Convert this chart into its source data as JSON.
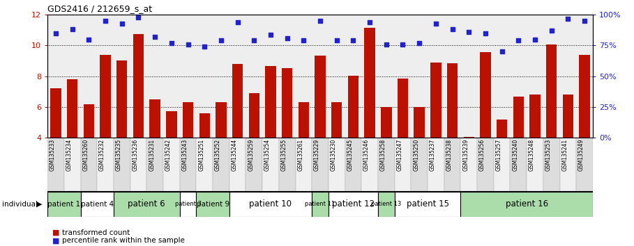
{
  "title": "GDS2416 / 212659_s_at",
  "gsm_labels": [
    "GSM135233",
    "GSM135234",
    "GSM135260",
    "GSM135232",
    "GSM135235",
    "GSM135236",
    "GSM135231",
    "GSM135242",
    "GSM135243",
    "GSM135251",
    "GSM135252",
    "GSM135244",
    "GSM135259",
    "GSM135254",
    "GSM135255",
    "GSM135261",
    "GSM135229",
    "GSM135230",
    "GSM135245",
    "GSM135246",
    "GSM135258",
    "GSM135247",
    "GSM135250",
    "GSM135237",
    "GSM135238",
    "GSM135239",
    "GSM135256",
    "GSM135257",
    "GSM135240",
    "GSM135248",
    "GSM135253",
    "GSM135241",
    "GSM135249"
  ],
  "bar_values": [
    7.2,
    7.8,
    6.2,
    9.4,
    9.05,
    10.75,
    6.5,
    5.75,
    6.3,
    5.6,
    6.3,
    8.8,
    6.9,
    8.65,
    8.55,
    6.3,
    9.35,
    6.3,
    8.05,
    11.15,
    6.0,
    7.85,
    6.0,
    8.9,
    8.85,
    4.05,
    9.55,
    5.2,
    6.7,
    6.8,
    10.05,
    6.8,
    9.4
  ],
  "blue_values": [
    85,
    88,
    80,
    95,
    93,
    98,
    82,
    77,
    76,
    74,
    79,
    94,
    79,
    84,
    81,
    79,
    95,
    79,
    79,
    94,
    76,
    76,
    77,
    93,
    88,
    86,
    85,
    70,
    79,
    80,
    87,
    97,
    95
  ],
  "patients": [
    {
      "label": "patient 1",
      "start": 0,
      "end": 2,
      "color": "#aaddaa"
    },
    {
      "label": "patient 4",
      "start": 2,
      "end": 4,
      "color": "#ffffff"
    },
    {
      "label": "patient 6",
      "start": 4,
      "end": 8,
      "color": "#aaddaa"
    },
    {
      "label": "patient 7",
      "start": 8,
      "end": 9,
      "color": "#ffffff"
    },
    {
      "label": "patient 9",
      "start": 9,
      "end": 11,
      "color": "#aaddaa"
    },
    {
      "label": "patient 10",
      "start": 11,
      "end": 16,
      "color": "#ffffff"
    },
    {
      "label": "patient 11",
      "start": 16,
      "end": 17,
      "color": "#aaddaa"
    },
    {
      "label": "patient 12",
      "start": 17,
      "end": 20,
      "color": "#ffffff"
    },
    {
      "label": "patient 13",
      "start": 20,
      "end": 21,
      "color": "#aaddaa"
    },
    {
      "label": "patient 15",
      "start": 21,
      "end": 25,
      "color": "#ffffff"
    },
    {
      "label": "patient 16",
      "start": 25,
      "end": 33,
      "color": "#aaddaa"
    }
  ],
  "ylim_left": [
    4,
    12
  ],
  "ylim_right": [
    0,
    100
  ],
  "yticks_left": [
    4,
    6,
    8,
    10,
    12
  ],
  "yticks_right": [
    0,
    25,
    50,
    75,
    100
  ],
  "bar_color": "#bb1100",
  "blue_color": "#2222cc",
  "plot_bg": "#eeeeee",
  "gsm_even_bg": "#dddddd",
  "gsm_odd_bg": "#f0f0f0"
}
